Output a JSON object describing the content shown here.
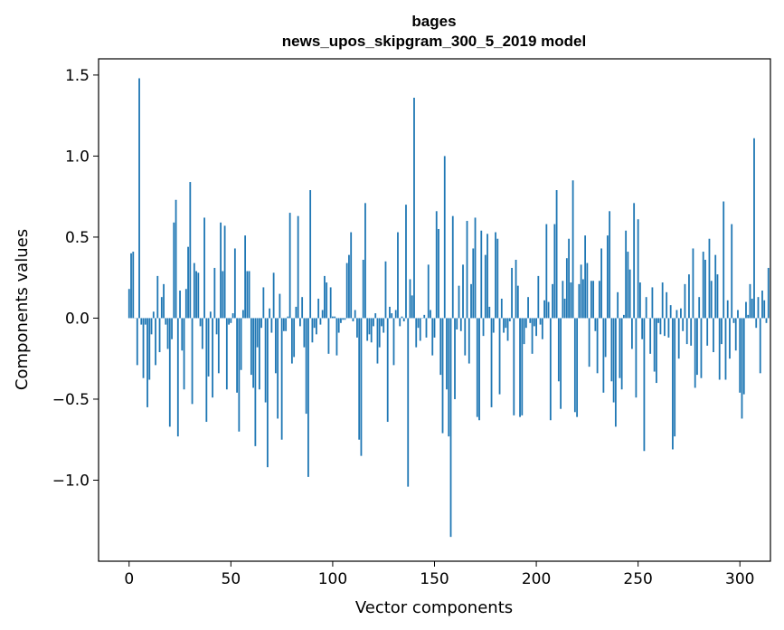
{
  "chart_data": {
    "type": "bar",
    "title": "bages",
    "subtitle": "news_upos_skipgram_300_5_2019 model",
    "xlabel": "Vector components",
    "ylabel": "Components values",
    "xlim": [
      -15,
      315
    ],
    "ylim": [
      -1.5,
      1.6
    ],
    "xticks": [
      0,
      50,
      100,
      150,
      200,
      250,
      300
    ],
    "yticks": [
      -1.0,
      -0.5,
      0.0,
      0.5,
      1.0,
      1.5
    ],
    "ytick_labels": [
      "−1.0",
      "−0.5",
      "0.0",
      "0.5",
      "1.0",
      "1.5"
    ],
    "grid": false,
    "bar_color": "#1f77b4",
    "x_start": 0,
    "values": [
      0.18,
      0.4,
      0.41,
      0.0,
      -0.29,
      1.48,
      -0.04,
      -0.37,
      -0.04,
      -0.55,
      -0.38,
      -0.1,
      0.04,
      -0.29,
      0.26,
      -0.21,
      0.13,
      0.21,
      -0.04,
      -0.19,
      -0.67,
      -0.13,
      0.59,
      0.73,
      -0.73,
      0.17,
      -0.2,
      -0.44,
      0.18,
      0.44,
      0.84,
      -0.53,
      0.34,
      0.29,
      0.28,
      -0.05,
      -0.19,
      0.62,
      -0.64,
      -0.36,
      0.04,
      -0.49,
      0.31,
      -0.1,
      -0.34,
      0.59,
      0.29,
      0.57,
      -0.44,
      -0.04,
      -0.03,
      0.03,
      0.43,
      -0.46,
      -0.7,
      -0.32,
      0.05,
      0.51,
      0.29,
      0.29,
      -0.35,
      -0.43,
      -0.79,
      -0.18,
      -0.44,
      -0.06,
      0.19,
      -0.52,
      -0.92,
      0.06,
      -0.09,
      0.28,
      -0.34,
      -0.62,
      0.15,
      -0.75,
      -0.08,
      -0.08,
      0.01,
      0.65,
      -0.28,
      -0.24,
      0.07,
      0.63,
      -0.05,
      0.13,
      -0.18,
      -0.59,
      -0.98,
      0.79,
      -0.15,
      -0.06,
      -0.1,
      0.12,
      -0.04,
      0.05,
      0.26,
      0.22,
      -0.22,
      0.19,
      0.01,
      0.01,
      -0.23,
      -0.09,
      -0.03,
      -0.01,
      -0.01,
      0.34,
      0.39,
      0.53,
      -0.02,
      0.05,
      -0.12,
      -0.75,
      -0.85,
      0.36,
      0.71,
      -0.14,
      -0.1,
      -0.15,
      -0.05,
      0.03,
      -0.28,
      -0.18,
      -0.05,
      -0.09,
      0.35,
      -0.64,
      0.07,
      0.03,
      -0.29,
      0.05,
      0.53,
      -0.05,
      0.01,
      -0.02,
      0.7,
      -1.04,
      0.24,
      0.14,
      1.36,
      -0.18,
      -0.06,
      -0.14,
      0.0,
      0.02,
      -0.12,
      0.33,
      0.05,
      -0.23,
      -0.12,
      0.66,
      0.55,
      -0.35,
      -0.71,
      1.0,
      -0.44,
      -0.73,
      -1.35,
      0.63,
      -0.5,
      -0.07,
      0.2,
      -0.08,
      0.33,
      -0.23,
      0.6,
      -0.28,
      0.21,
      0.43,
      0.62,
      -0.61,
      -0.63,
      0.54,
      -0.11,
      0.39,
      0.52,
      0.07,
      -0.55,
      -0.09,
      0.53,
      0.49,
      -0.47,
      0.12,
      -0.09,
      -0.06,
      -0.14,
      -0.02,
      0.31,
      -0.6,
      0.36,
      0.2,
      -0.61,
      -0.6,
      -0.16,
      -0.06,
      0.13,
      -0.03,
      -0.22,
      -0.05,
      -0.11,
      0.26,
      -0.04,
      -0.13,
      0.11,
      0.58,
      0.1,
      -0.63,
      0.21,
      0.58,
      0.79,
      -0.39,
      -0.56,
      0.23,
      0.12,
      0.37,
      0.49,
      0.22,
      0.85,
      -0.58,
      -0.61,
      0.21,
      0.33,
      0.24,
      0.51,
      0.34,
      -0.3,
      0.23,
      0.23,
      -0.08,
      -0.34,
      0.23,
      0.43,
      -0.46,
      -0.24,
      0.51,
      0.66,
      -0.39,
      -0.52,
      -0.67,
      0.16,
      -0.37,
      -0.44,
      0.02,
      0.54,
      0.41,
      0.3,
      -0.19,
      0.71,
      -0.49,
      0.61,
      0.22,
      -0.13,
      -0.82,
      0.13,
      0.0,
      -0.22,
      0.19,
      -0.33,
      -0.4,
      -0.03,
      -0.1,
      0.22,
      -0.11,
      0.16,
      -0.12,
      0.08,
      -0.81,
      -0.73,
      0.05,
      -0.25,
      0.06,
      -0.08,
      0.21,
      -0.16,
      0.27,
      -0.17,
      0.43,
      -0.43,
      -0.35,
      0.13,
      -0.37,
      0.41,
      0.36,
      -0.17,
      0.49,
      0.23,
      -0.21,
      0.39,
      0.27,
      -0.38,
      -0.16,
      0.72,
      -0.38,
      0.11,
      -0.25,
      0.58,
      -0.03,
      -0.2,
      0.05,
      -0.46,
      -0.62,
      -0.47,
      0.1,
      0.02,
      0.21,
      0.12,
      1.11,
      -0.06,
      0.13,
      -0.34,
      0.17,
      0.11,
      -0.03,
      0.31
    ]
  }
}
